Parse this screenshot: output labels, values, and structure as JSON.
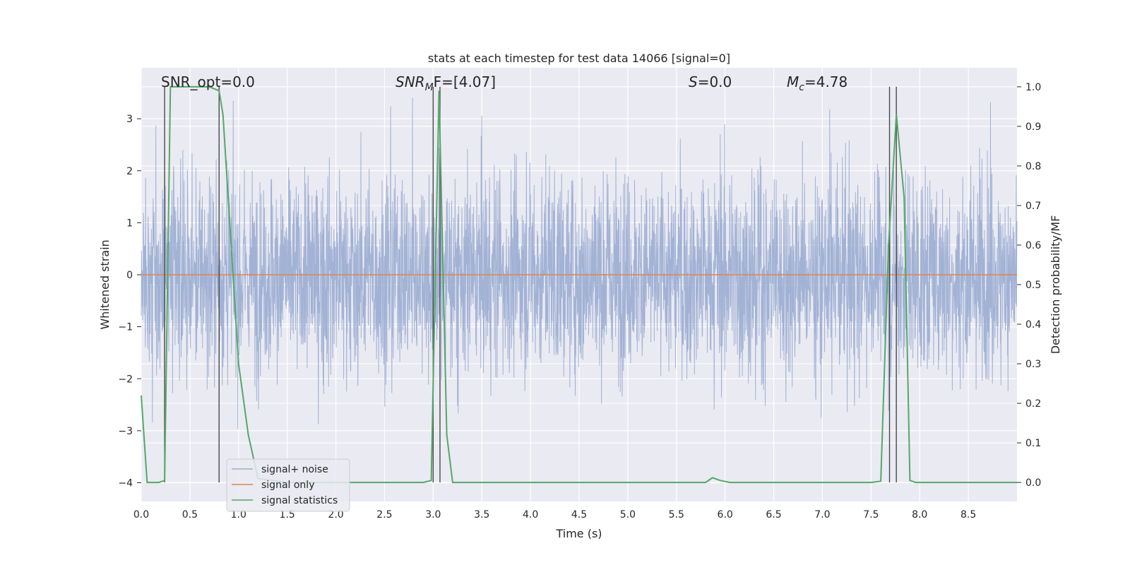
{
  "chart_data": {
    "type": "line",
    "title": "stats at each timestep for test data 14066 [signal=0]",
    "xlabel": "Time (s)",
    "ylabel": "Whitened strain",
    "y2label": "Detection probability/MF",
    "xlim": [
      0.0,
      9.0
    ],
    "ylim": [
      -4.36,
      3.98
    ],
    "y2lim": [
      -0.048,
      1.048
    ],
    "xticks": [
      "0.0",
      "0.5",
      "1.0",
      "1.5",
      "2.0",
      "2.5",
      "3.0",
      "3.5",
      "4.0",
      "4.5",
      "5.0",
      "5.5",
      "6.0",
      "6.5",
      "7.0",
      "7.5",
      "8.0",
      "8.5"
    ],
    "yticks": [
      "3",
      "2",
      "1",
      "0",
      "−1",
      "−2",
      "−3",
      "−4"
    ],
    "y2ticks": [
      "1.0",
      "0.9",
      "0.8",
      "0.7",
      "0.6",
      "0.5",
      "0.4",
      "0.3",
      "0.2",
      "0.1",
      "0.0"
    ],
    "grid": true,
    "legend_position": "lower-left",
    "annotations": {
      "snr_opt": "SNR_opt=0.0",
      "snr_mf_name": "SNR",
      "snr_mf_sub": "M",
      "snr_mf_rest": "F=[4.07]",
      "s_name": "S",
      "s_rest": "=0.0",
      "mc_name": "M",
      "mc_sub": "c",
      "mc_rest": "=4.78"
    },
    "series": [
      {
        "name": "signal+ noise",
        "color": "#9aacd1",
        "description_only": "dense whitened noise between about -2.5 and 2.5",
        "envelope_typical": [
          -2.1,
          2.1
        ],
        "envelope_extreme": [
          -3.9,
          3.4
        ]
      },
      {
        "name": "signal only",
        "color": "#dd8452",
        "x": [
          0.0,
          9.0
        ],
        "y": [
          0.0,
          0.0
        ]
      },
      {
        "name": "signal statistics",
        "color": "#55a868",
        "axis": "right",
        "x": [
          0.0,
          0.06,
          0.18,
          0.24,
          0.3,
          0.5,
          0.7,
          0.8,
          0.84,
          1.0,
          1.1,
          1.2,
          1.5,
          2.0,
          2.5,
          2.9,
          2.98,
          3.06,
          3.14,
          3.2,
          3.5,
          4.0,
          5.0,
          5.8,
          5.87,
          5.95,
          6.05,
          6.5,
          7.0,
          7.5,
          7.6,
          7.68,
          7.76,
          7.84,
          7.9,
          7.96,
          8.5,
          9.0
        ],
        "y": [
          0.22,
          0.0,
          0.0,
          0.005,
          1.0,
          1.0,
          1.0,
          0.99,
          0.93,
          0.3,
          0.12,
          0.01,
          0.0,
          0.0,
          0.0,
          0.0,
          0.005,
          0.99,
          0.12,
          0.0,
          0.0,
          0.0,
          0.0,
          0.0,
          0.012,
          0.005,
          0.0,
          0.0,
          0.0,
          0.0,
          0.003,
          0.6,
          0.93,
          0.72,
          0.005,
          0.0,
          0.0,
          0.0
        ]
      }
    ],
    "vlines": [
      0.24,
      0.8,
      3.0,
      3.07,
      7.69,
      7.76
    ]
  }
}
